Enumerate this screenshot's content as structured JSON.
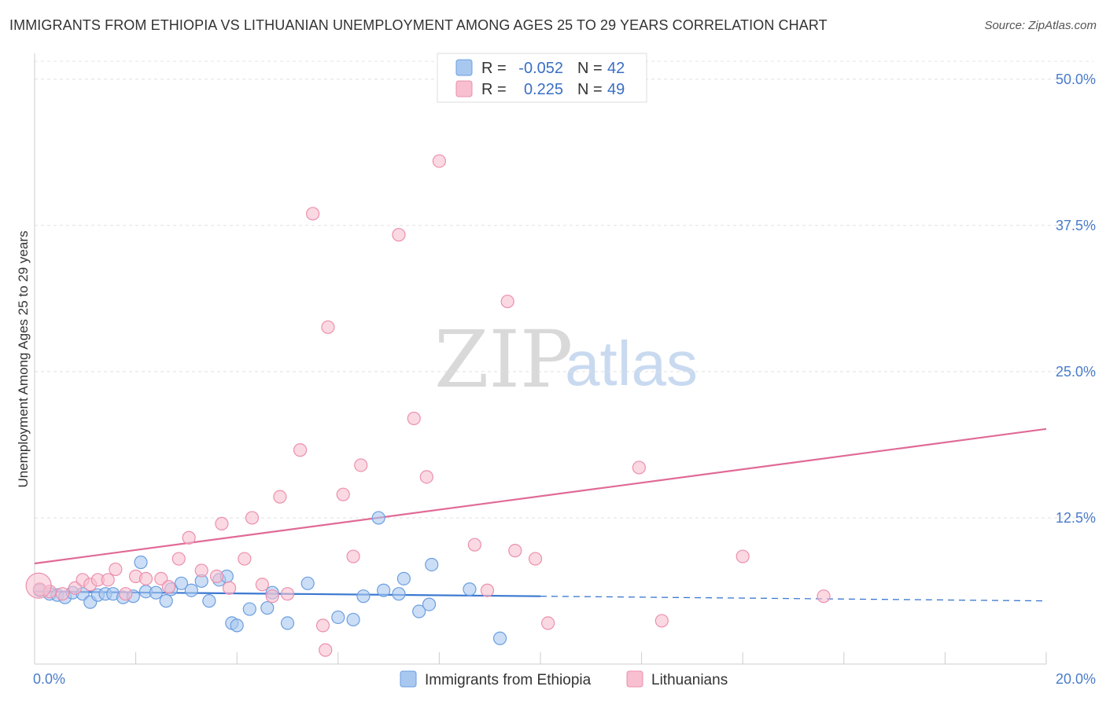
{
  "header": {
    "title": "IMMIGRANTS FROM ETHIOPIA VS LITHUANIAN UNEMPLOYMENT AMONG AGES 25 TO 29 YEARS CORRELATION CHART",
    "source": "Source: ZipAtlas.com"
  },
  "watermark": {
    "part1": "ZIP",
    "part2": "atlas"
  },
  "legend": {
    "r_label": "R =",
    "n_label": "N =",
    "rows": [
      {
        "r": "-0.052",
        "n": "42"
      },
      {
        "r": "0.225",
        "n": "49"
      }
    ]
  },
  "chart_data": {
    "type": "scatter",
    "ylabel": "Unemployment Among Ages 25 to 29 years",
    "xlim": [
      0,
      20
    ],
    "ylim": [
      0,
      52
    ],
    "x_tick_labels": [
      "0.0%",
      "20.0%"
    ],
    "y_ticks": [
      12.5,
      25.0,
      37.5,
      50.0
    ],
    "y_tick_labels": [
      "12.5%",
      "25.0%",
      "37.5%",
      "50.0%"
    ],
    "grid": true,
    "legend_position": "top-center",
    "colors": {
      "ethiopia_fill": "#a9c8f0",
      "ethiopia_stroke": "#6b9ee0",
      "ethiopia_line": "#3a78d0",
      "lithuanians_fill": "#f7bfd0",
      "lithuanians_stroke": "#ec8fad",
      "lithuanians_line": "#e06a96"
    },
    "series": [
      {
        "name": "Immigrants from Ethiopia",
        "key": "ethiopia",
        "points": [
          [
            0.1,
            6.3
          ],
          [
            0.3,
            6.0
          ],
          [
            0.45,
            5.9
          ],
          [
            0.6,
            5.7
          ],
          [
            0.75,
            6.1
          ],
          [
            0.95,
            6.0
          ],
          [
            1.1,
            5.3
          ],
          [
            1.25,
            5.9
          ],
          [
            1.4,
            6.0
          ],
          [
            1.55,
            6.0
          ],
          [
            1.75,
            5.7
          ],
          [
            1.95,
            5.8
          ],
          [
            2.1,
            8.7
          ],
          [
            2.2,
            6.2
          ],
          [
            2.4,
            6.1
          ],
          [
            2.6,
            5.4
          ],
          [
            2.7,
            6.4
          ],
          [
            2.9,
            6.9
          ],
          [
            3.1,
            6.3
          ],
          [
            3.3,
            7.1
          ],
          [
            3.45,
            5.4
          ],
          [
            3.65,
            7.2
          ],
          [
            3.8,
            7.5
          ],
          [
            3.9,
            3.5
          ],
          [
            4.0,
            3.3
          ],
          [
            4.25,
            4.7
          ],
          [
            4.6,
            4.8
          ],
          [
            4.7,
            6.1
          ],
          [
            5.0,
            3.5
          ],
          [
            5.4,
            6.9
          ],
          [
            6.0,
            4.0
          ],
          [
            6.3,
            3.8
          ],
          [
            6.5,
            5.8
          ],
          [
            6.8,
            12.5
          ],
          [
            6.9,
            6.3
          ],
          [
            7.2,
            6.0
          ],
          [
            7.3,
            7.3
          ],
          [
            7.6,
            4.5
          ],
          [
            7.8,
            5.1
          ],
          [
            7.85,
            8.5
          ],
          [
            8.6,
            6.4
          ],
          [
            9.2,
            2.2
          ]
        ],
        "trend": {
          "x": [
            0,
            10
          ],
          "y": [
            6.2,
            5.8
          ]
        },
        "trend_dashed": {
          "x": [
            10,
            20
          ],
          "y": [
            5.8,
            5.4
          ]
        }
      },
      {
        "name": "Lithuanians",
        "key": "lithuanians",
        "points": [
          [
            0.1,
            6.4
          ],
          [
            0.3,
            6.2
          ],
          [
            0.55,
            6.0
          ],
          [
            0.8,
            6.5
          ],
          [
            0.95,
            7.2
          ],
          [
            1.1,
            6.8
          ],
          [
            1.25,
            7.2
          ],
          [
            1.45,
            7.2
          ],
          [
            1.6,
            8.1
          ],
          [
            1.8,
            6.0
          ],
          [
            2.0,
            7.5
          ],
          [
            2.2,
            7.3
          ],
          [
            2.5,
            7.3
          ],
          [
            2.65,
            6.6
          ],
          [
            2.85,
            9.0
          ],
          [
            3.05,
            10.8
          ],
          [
            3.3,
            8.0
          ],
          [
            3.6,
            7.5
          ],
          [
            3.7,
            12.0
          ],
          [
            3.85,
            6.5
          ],
          [
            4.15,
            9.0
          ],
          [
            4.3,
            12.5
          ],
          [
            4.5,
            6.8
          ],
          [
            4.7,
            5.8
          ],
          [
            4.85,
            14.3
          ],
          [
            5.0,
            6.0
          ],
          [
            5.25,
            18.3
          ],
          [
            5.5,
            38.5
          ],
          [
            5.7,
            3.3
          ],
          [
            5.75,
            1.2
          ],
          [
            5.8,
            28.8
          ],
          [
            6.1,
            14.5
          ],
          [
            6.3,
            9.2
          ],
          [
            6.45,
            17.0
          ],
          [
            7.2,
            36.7
          ],
          [
            7.5,
            21.0
          ],
          [
            7.75,
            16.0
          ],
          [
            8.0,
            43.0
          ],
          [
            8.7,
            10.2
          ],
          [
            8.95,
            6.3
          ],
          [
            9.35,
            31.0
          ],
          [
            9.5,
            9.7
          ],
          [
            9.9,
            9.0
          ],
          [
            10.15,
            3.5
          ],
          [
            11.95,
            16.8
          ],
          [
            12.4,
            3.7
          ],
          [
            14.0,
            9.2
          ],
          [
            15.6,
            5.8
          ],
          [
            0.08,
            6.7
          ]
        ],
        "trend": {
          "x": [
            0,
            20
          ],
          "y": [
            8.6,
            20.1
          ]
        }
      }
    ]
  },
  "bottom_legend": [
    {
      "label": "Immigrants from Ethiopia"
    },
    {
      "label": "Lithuanians"
    }
  ]
}
